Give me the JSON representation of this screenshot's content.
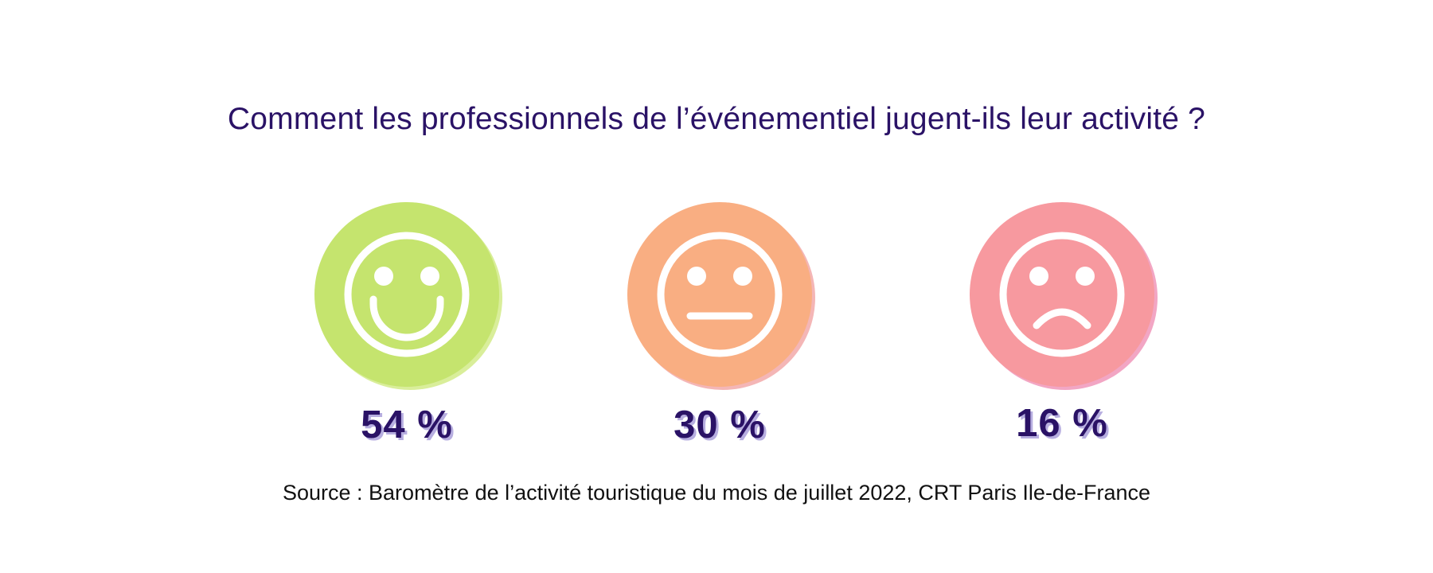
{
  "title": "Comment les professionnels de l’événementiel jugent-ils leur activité ?",
  "source": "Source : Baromètre de l’activité touristique du mois de juillet 2022, CRT Paris Ile-de-France",
  "chart_data": {
    "type": "pie",
    "title": "Comment les professionnels de l’événementiel jugent-ils leur activité ?",
    "categories": [
      "satisfied-face",
      "neutral-face",
      "dissatisfied-face"
    ],
    "values": [
      54,
      30,
      16
    ],
    "labels": [
      "54 %",
      "30 %",
      "16 %"
    ],
    "colors": [
      "#c5e46e",
      "#f9ae82",
      "#f7999f"
    ],
    "shadow_colors": [
      "#d9ee9a",
      "#f4b6b6",
      "#f2a6c4"
    ]
  }
}
